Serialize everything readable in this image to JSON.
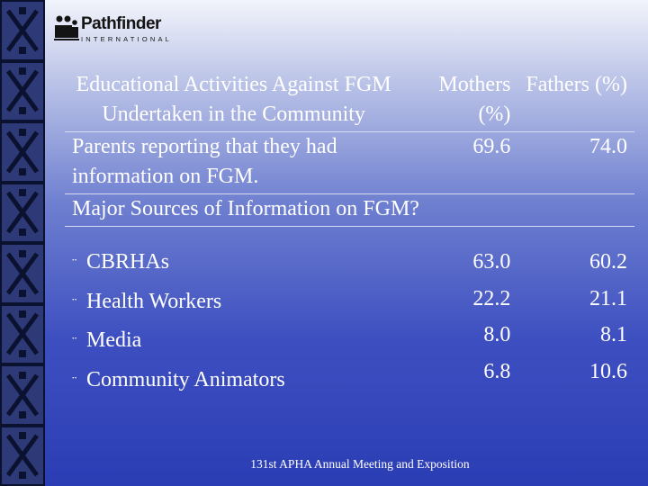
{
  "logo": {
    "name": "Pathfinder",
    "sub": "INTERNATIONAL"
  },
  "table": {
    "header": {
      "title": "Educational Activities Against FGM Undertaken in the Community",
      "mothers": "Mothers (%)",
      "fathers": "Fathers (%)"
    },
    "info_row": {
      "label": "Parents reporting that they had information on FGM.",
      "mothers": "69.6",
      "fathers": "74.0"
    },
    "sources_title": "Major Sources of Information on FGM?",
    "bullet_symbol": "¨",
    "sources": [
      {
        "label": "CBRHAs",
        "mothers": "63.0",
        "fathers": "60.2"
      },
      {
        "label": "Health Workers",
        "mothers": "22.2",
        "fathers": "21.1"
      },
      {
        "label": "Media",
        "mothers": "8.0",
        "fathers": "8.1"
      },
      {
        "label": "Community Animators",
        "mothers": "6.8",
        "fathers": "10.6"
      }
    ]
  },
  "footer": "131st APHA Annual Meeting and Exposition",
  "colors": {
    "text": "#ffffff",
    "background_top": "#f2f4fb",
    "background_bottom": "#2b3db4",
    "side_strip": "#1a2452"
  }
}
